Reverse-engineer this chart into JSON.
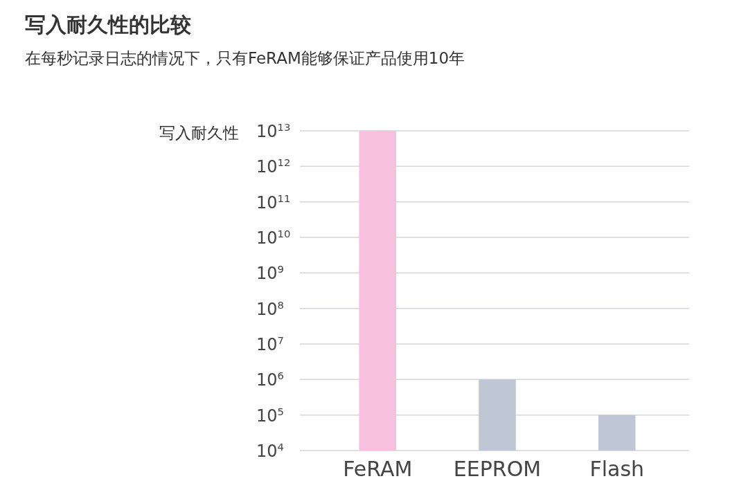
{
  "chart_data": {
    "type": "bar",
    "title": "写入耐久性的比较",
    "subtitle": "在每秒记录日志的情况下，只有FeRAM能够保证产品使用10年",
    "ylabel": "写入耐久性",
    "categories": [
      "FeRAM",
      "EEPROM",
      "Flash"
    ],
    "values": [
      10000000000000.0,
      1000000.0,
      100000.0
    ],
    "colors": [
      "#f7c0de",
      "#bfc6d4",
      "#bfc6d4"
    ],
    "log": true,
    "grid": "y",
    "ylim": [
      10000.0,
      10000000000000.0
    ],
    "yticks": [
      {
        "value": 10000.0,
        "label": "10$^{4}$"
      },
      {
        "value": 100000.0,
        "label": "10$^{5}$"
      },
      {
        "value": 1000000.0,
        "label": "10$^{6}$"
      },
      {
        "value": 10000000.0,
        "label": "10$^{7}$"
      },
      {
        "value": 100000000.0,
        "label": "10$^{8}$"
      },
      {
        "value": 1000000000.0,
        "label": "10$^{9}$"
      },
      {
        "value": 10000000000.0,
        "label": "10$^{10}$"
      },
      {
        "value": 100000000000.0,
        "label": "10$^{11}$"
      },
      {
        "value": 1000000000000.0,
        "label": "10$^{12}$"
      },
      {
        "value": 10000000000000.0,
        "label": "10$^{13}$"
      }
    ]
  }
}
